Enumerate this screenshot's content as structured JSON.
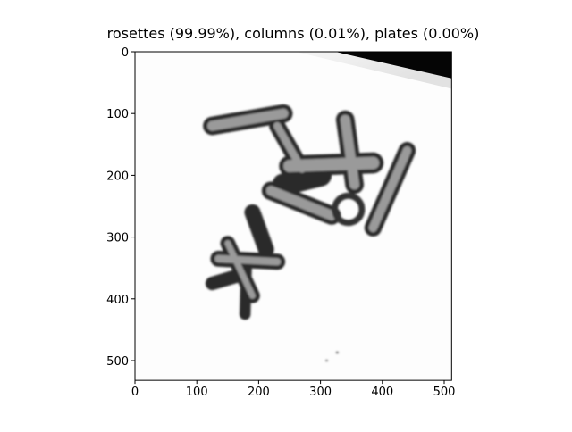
{
  "chart_data": {
    "type": "image",
    "title": "rosettes (99.99%), columns (0.01%), plates (0.00%)",
    "xlim": [
      0,
      512
    ],
    "ylim": [
      532,
      0
    ],
    "xticks": [
      0,
      100,
      200,
      300,
      400,
      500
    ],
    "yticks": [
      0,
      100,
      200,
      300,
      400,
      500
    ]
  }
}
